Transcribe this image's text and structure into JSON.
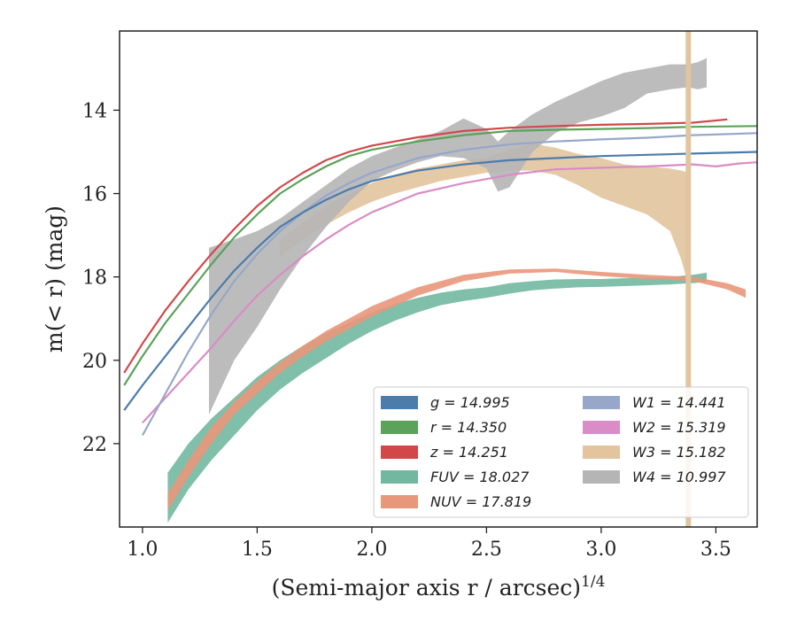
{
  "chart_data": {
    "type": "line",
    "xlabel": "(Semi-major axis r / arcsec)",
    "xlabel_exponent": "1/4",
    "ylabel": "m(< r) (mag)",
    "xlim": [
      0.9,
      3.68
    ],
    "ylim": [
      24.0,
      12.1
    ],
    "y_inverted": true,
    "xticks": [
      "1.0",
      "1.5",
      "2.0",
      "2.5",
      "3.0",
      "3.5"
    ],
    "yticks": [
      "14",
      "16",
      "18",
      "20",
      "22"
    ],
    "grid": false,
    "legend_position": "lower-right",
    "legend_columns": 2,
    "vertical_band_x": 3.38,
    "series": [
      {
        "key": "g",
        "label": "g = 14.995",
        "color": "#4c7cac",
        "band": false,
        "x": [
          0.92,
          1.0,
          1.1,
          1.2,
          1.3,
          1.4,
          1.5,
          1.6,
          1.7,
          1.8,
          1.9,
          2.0,
          2.2,
          2.4,
          2.6,
          2.8,
          3.0,
          3.2,
          3.4,
          3.68
        ],
        "y": [
          21.2,
          20.6,
          19.9,
          19.2,
          18.5,
          17.85,
          17.3,
          16.8,
          16.45,
          16.15,
          15.9,
          15.7,
          15.45,
          15.3,
          15.2,
          15.15,
          15.1,
          15.07,
          15.04,
          15.0
        ]
      },
      {
        "key": "r",
        "label": "r = 14.350",
        "color": "#5ba25a",
        "band": false,
        "x": [
          0.92,
          1.0,
          1.1,
          1.2,
          1.3,
          1.4,
          1.5,
          1.6,
          1.7,
          1.8,
          1.9,
          2.0,
          2.2,
          2.4,
          2.6,
          2.8,
          3.0,
          3.2,
          3.4,
          3.68
        ],
        "y": [
          20.6,
          19.9,
          19.1,
          18.4,
          17.7,
          17.05,
          16.5,
          16.0,
          15.65,
          15.35,
          15.1,
          14.95,
          14.75,
          14.6,
          14.5,
          14.47,
          14.45,
          14.43,
          14.4,
          14.38
        ]
      },
      {
        "key": "z",
        "label": "z = 14.251",
        "color": "#d2484a",
        "band": false,
        "x": [
          0.92,
          1.0,
          1.1,
          1.2,
          1.3,
          1.4,
          1.5,
          1.6,
          1.7,
          1.8,
          1.9,
          2.0,
          2.2,
          2.4,
          2.6,
          2.8,
          3.0,
          3.2,
          3.4,
          3.55
        ],
        "y": [
          20.3,
          19.6,
          18.8,
          18.1,
          17.45,
          16.85,
          16.3,
          15.85,
          15.5,
          15.2,
          15.0,
          14.85,
          14.65,
          14.5,
          14.42,
          14.38,
          14.35,
          14.33,
          14.3,
          14.22
        ]
      },
      {
        "key": "FUV",
        "label": "FUV = 18.027",
        "color": "#72b8a0",
        "band": true,
        "x": [
          1.11,
          1.2,
          1.3,
          1.4,
          1.5,
          1.6,
          1.7,
          1.8,
          1.9,
          2.0,
          2.1,
          2.2,
          2.3,
          2.4,
          2.5,
          2.6,
          2.7,
          2.8,
          2.9,
          3.0,
          3.1,
          3.2,
          3.3,
          3.4,
          3.46
        ],
        "y_upper": [
          22.7,
          22.0,
          21.4,
          20.9,
          20.4,
          20.0,
          19.65,
          19.35,
          19.1,
          18.85,
          18.65,
          18.5,
          18.38,
          18.3,
          18.25,
          18.15,
          18.1,
          18.06,
          18.05,
          18.05,
          18.03,
          18.02,
          18.0,
          17.95,
          17.9
        ],
        "y_lower": [
          23.9,
          23.1,
          22.4,
          21.8,
          21.2,
          20.7,
          20.3,
          19.95,
          19.6,
          19.3,
          19.05,
          18.85,
          18.68,
          18.58,
          18.5,
          18.4,
          18.32,
          18.28,
          18.25,
          18.24,
          18.22,
          18.2,
          18.18,
          18.15,
          18.12
        ]
      },
      {
        "key": "NUV",
        "label": "NUV = 17.819",
        "color": "#e9977a",
        "band": true,
        "x": [
          1.11,
          1.2,
          1.3,
          1.4,
          1.5,
          1.6,
          1.7,
          1.8,
          1.9,
          2.0,
          2.2,
          2.4,
          2.6,
          2.8,
          3.0,
          3.2,
          3.4,
          3.55,
          3.63
        ],
        "y_upper": [
          23.2,
          22.4,
          21.6,
          21.0,
          20.5,
          20.05,
          19.65,
          19.3,
          19.0,
          18.7,
          18.25,
          17.95,
          17.82,
          17.8,
          17.88,
          17.95,
          18.0,
          18.15,
          18.3
        ],
        "y_lower": [
          23.6,
          22.8,
          22.0,
          21.3,
          20.8,
          20.3,
          19.9,
          19.55,
          19.25,
          18.95,
          18.45,
          18.1,
          17.92,
          17.88,
          17.98,
          18.05,
          18.1,
          18.3,
          18.5
        ]
      },
      {
        "key": "W1",
        "label": "W1 = 14.441",
        "color": "#97a7c9",
        "band": false,
        "x": [
          1.0,
          1.1,
          1.2,
          1.3,
          1.4,
          1.5,
          1.6,
          1.7,
          1.8,
          1.9,
          2.0,
          2.2,
          2.4,
          2.6,
          2.8,
          3.0,
          3.2,
          3.4,
          3.68
        ],
        "y": [
          21.8,
          20.8,
          19.8,
          18.9,
          18.1,
          17.45,
          16.9,
          16.45,
          16.05,
          15.75,
          15.5,
          15.15,
          14.95,
          14.82,
          14.75,
          14.7,
          14.66,
          14.6,
          14.55
        ]
      },
      {
        "key": "W2",
        "label": "W2 = 15.319",
        "color": "#d98cc5",
        "band": false,
        "x": [
          1.0,
          1.1,
          1.2,
          1.3,
          1.4,
          1.5,
          1.6,
          1.7,
          1.8,
          1.9,
          2.0,
          2.2,
          2.4,
          2.6,
          2.8,
          3.0,
          3.2,
          3.4,
          3.5,
          3.6,
          3.68
        ],
        "y": [
          21.5,
          20.9,
          20.3,
          19.7,
          19.05,
          18.45,
          17.95,
          17.5,
          17.1,
          16.75,
          16.45,
          16.0,
          15.75,
          15.55,
          15.42,
          15.38,
          15.35,
          15.3,
          15.35,
          15.28,
          15.25
        ]
      },
      {
        "key": "W3",
        "label": "W3 = 15.182",
        "color": "#e2c49f",
        "band": true,
        "x": [
          1.6,
          1.7,
          1.8,
          1.9,
          2.0,
          2.1,
          2.2,
          2.3,
          2.4,
          2.5,
          2.6,
          2.7,
          2.8,
          2.9,
          3.0,
          3.1,
          3.2,
          3.3,
          3.35,
          3.38
        ],
        "y_upper": [
          17.1,
          16.7,
          16.3,
          16.0,
          15.75,
          15.55,
          15.4,
          15.3,
          15.2,
          15.15,
          14.95,
          14.8,
          14.9,
          15.05,
          15.15,
          15.3,
          15.35,
          15.4,
          15.45,
          15.5
        ],
        "y_lower": [
          17.5,
          17.1,
          16.75,
          16.45,
          16.2,
          16.0,
          15.85,
          15.7,
          15.6,
          15.5,
          15.45,
          15.45,
          15.55,
          15.8,
          16.1,
          16.3,
          16.5,
          16.9,
          17.6,
          18.2
        ]
      },
      {
        "key": "W4",
        "label": "W4 = 10.997",
        "color": "#b5b5b5",
        "band": true,
        "x": [
          1.29,
          1.4,
          1.5,
          1.6,
          1.7,
          1.8,
          1.9,
          2.0,
          2.1,
          2.2,
          2.3,
          2.4,
          2.5,
          2.55,
          2.6,
          2.7,
          2.8,
          2.9,
          3.0,
          3.1,
          3.2,
          3.3,
          3.38,
          3.42,
          3.46
        ],
        "y_upper": [
          17.3,
          17.1,
          16.9,
          16.6,
          16.2,
          15.8,
          15.4,
          15.1,
          14.9,
          14.7,
          14.5,
          14.2,
          14.45,
          14.75,
          14.5,
          14.1,
          13.8,
          13.55,
          13.3,
          13.1,
          13.0,
          12.9,
          12.9,
          12.85,
          12.75
        ],
        "y_lower": [
          21.3,
          20.0,
          19.2,
          18.3,
          17.5,
          16.8,
          16.2,
          15.7,
          15.45,
          15.25,
          15.1,
          15.15,
          15.4,
          15.95,
          15.85,
          15.0,
          14.55,
          14.3,
          14.15,
          13.95,
          13.6,
          13.5,
          13.45,
          13.5,
          13.45
        ]
      }
    ]
  }
}
